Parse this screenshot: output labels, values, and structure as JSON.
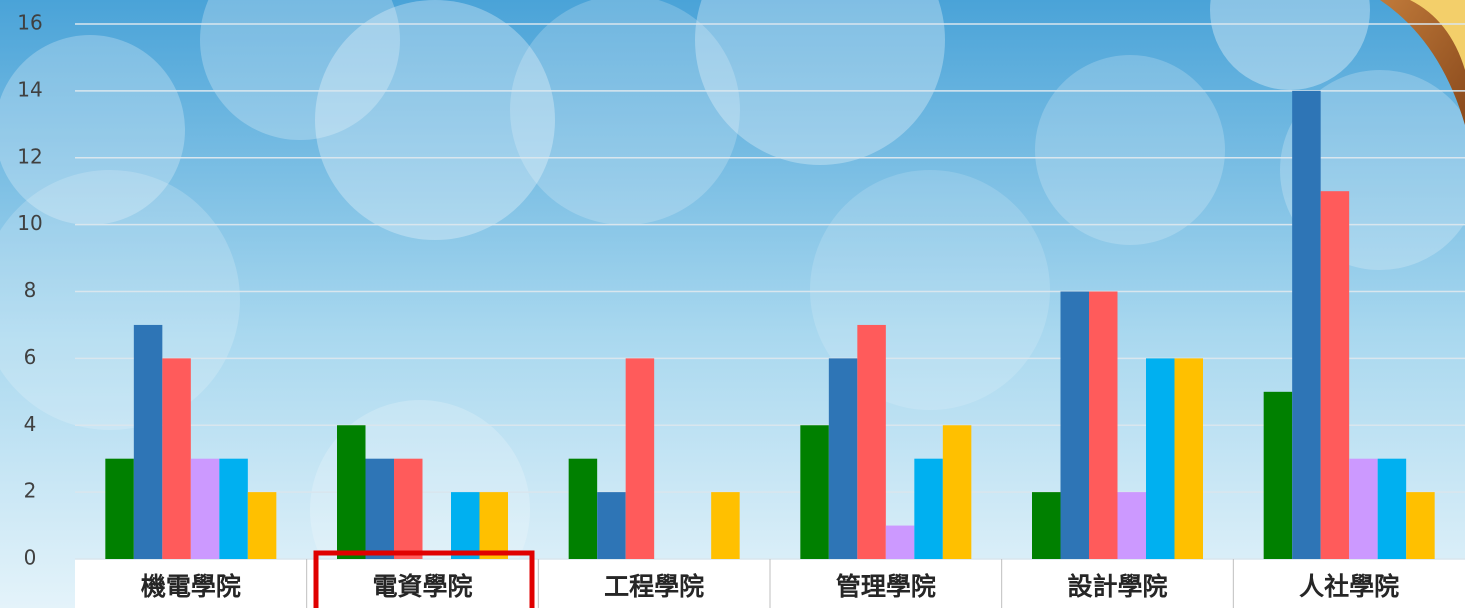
{
  "chart_data": {
    "type": "bar",
    "categories": [
      "機電學院",
      "電資學院",
      "工程學院",
      "管理學院",
      "設計學院",
      "人社學院"
    ],
    "series": [
      {
        "color": "#008000",
        "values": [
          3,
          4,
          3,
          4,
          2,
          5
        ]
      },
      {
        "color": "#2e75b6",
        "values": [
          7,
          3,
          2,
          6,
          8,
          14
        ]
      },
      {
        "color": "#ff5b5b",
        "values": [
          6,
          3,
          6,
          7,
          8,
          11
        ]
      },
      {
        "color": "#cc99ff",
        "values": [
          3,
          0,
          0,
          1,
          2,
          3
        ]
      },
      {
        "color": "#00b0f0",
        "values": [
          3,
          2,
          0,
          3,
          6,
          3
        ]
      },
      {
        "color": "#ffc000",
        "values": [
          2,
          2,
          2,
          4,
          6,
          2
        ]
      }
    ],
    "ylim": [
      0,
      16
    ],
    "yticks": [
      0,
      2,
      4,
      6,
      8,
      10,
      12,
      14,
      16
    ],
    "grid": true
  }
}
